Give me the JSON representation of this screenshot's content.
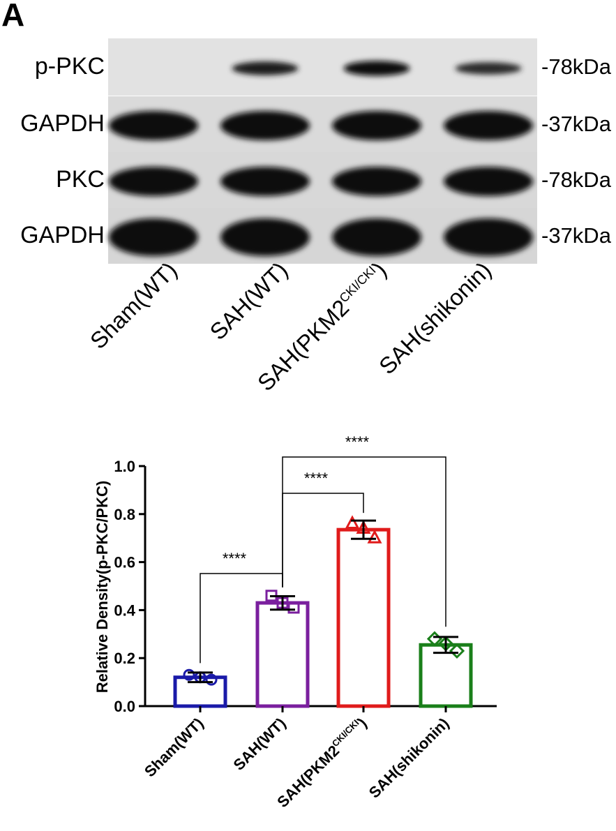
{
  "panel_label": "A",
  "blot": {
    "rows": [
      {
        "name": "p-PKC",
        "kda": "-78kDa"
      },
      {
        "name": "GAPDH",
        "kda": "-37kDa"
      },
      {
        "name": "PKC",
        "kda": "-78kDa"
      },
      {
        "name": "GAPDH",
        "kda": "-37kDa"
      }
    ],
    "lanes": [
      {
        "label": "Sham(WT)",
        "sup": ""
      },
      {
        "label": "SAH(WT)",
        "sup": ""
      },
      {
        "label": "SAH(PKM2",
        "sup": "CKI/CKI",
        "suffix": ")"
      },
      {
        "label": "SAH(shikonin)",
        "sup": ""
      }
    ],
    "band_intensity": {
      "p-PKC": [
        0.0,
        0.75,
        0.95,
        0.55
      ],
      "GAPDH_1": [
        1,
        1,
        1,
        1
      ],
      "PKC": [
        1,
        1,
        1,
        1
      ],
      "GAPDH_2": [
        1,
        1,
        1,
        1
      ]
    }
  },
  "chart_data": {
    "type": "bar",
    "categories": [
      "Sham(WT)",
      "SAH(WT)",
      "SAH(PKM2CKI/CKI)",
      "SAH(shikonin)"
    ],
    "category_display": [
      {
        "label": "Sham(WT)",
        "sup": ""
      },
      {
        "label": "SAH(WT)",
        "sup": ""
      },
      {
        "label": "SAH(PKM2",
        "sup": "CKI/CKI",
        "suffix": ")"
      },
      {
        "label": "SAH(shikonin)",
        "sup": ""
      }
    ],
    "values": [
      0.12,
      0.43,
      0.735,
      0.255
    ],
    "errors": [
      0.02,
      0.028,
      0.038,
      0.033
    ],
    "points": [
      [
        0.13,
        0.11,
        0.12
      ],
      [
        0.46,
        0.41,
        0.43
      ],
      [
        0.76,
        0.7,
        0.74
      ],
      [
        0.28,
        0.23,
        0.26
      ]
    ],
    "markers": [
      "circle",
      "square",
      "triangle",
      "diamond"
    ],
    "colors": [
      "#1a1aa8",
      "#7a1f9e",
      "#e01b1b",
      "#1a7f1a"
    ],
    "ylabel": "Relative Density(p-PKC/PKC)",
    "xlabel": "",
    "ylim": [
      0,
      1.0
    ],
    "yticks": [
      "0.0",
      "0.2",
      "0.4",
      "0.6",
      "0.8",
      "1.0"
    ],
    "significance": [
      {
        "from": 0,
        "to": 1,
        "label": "****"
      },
      {
        "from": 1,
        "to": 2,
        "label": "****"
      },
      {
        "from": 1,
        "to": 3,
        "label": "****"
      }
    ]
  }
}
